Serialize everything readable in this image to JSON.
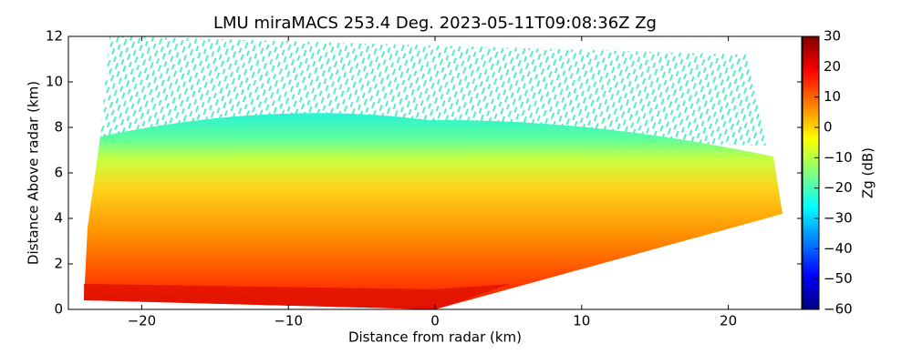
{
  "chart_data": {
    "type": "rhi",
    "title": "LMU miraMACS 253.4 Deg. 2023-05-11T09:08:36Z  Zg",
    "x_label": "Distance from radar (km)",
    "y_label": "Distance Above radar  (km)",
    "xlim": [
      -25,
      25
    ],
    "xticks": [
      {
        "value": -20,
        "label": "−20"
      },
      {
        "value": -10,
        "label": "−10"
      },
      0,
      10,
      20
    ],
    "ylim": [
      0,
      12
    ],
    "yticks": [
      0,
      2,
      4,
      6,
      8,
      10,
      12
    ],
    "colorbar": {
      "label": "Zg (dB)",
      "lim": [
        -60,
        30
      ],
      "ticks": [
        {
          "value": -60,
          "label": "−60"
        },
        {
          "value": -50,
          "label": "−50"
        },
        {
          "value": -40,
          "label": "−40"
        },
        {
          "value": -30,
          "label": "−30"
        },
        {
          "value": -20,
          "label": "−20"
        },
        {
          "value": -10,
          "label": "−10"
        },
        0,
        10,
        20,
        30
      ],
      "colors": [
        "#00007f",
        "#0000ff",
        "#007fff",
        "#00ffff",
        "#7fff7f",
        "#ffff00",
        "#ff7f00",
        "#ff0000",
        "#7f0000"
      ]
    }
  }
}
